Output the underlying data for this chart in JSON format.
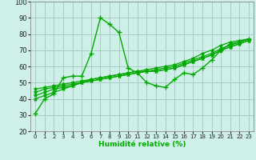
{
  "xlabel": "Humidité relative (%)",
  "background_color": "#cff0e8",
  "grid_color": "#aaccc4",
  "line_color": "#00aa00",
  "xlim": [
    -0.5,
    23.5
  ],
  "ylim": [
    20,
    100
  ],
  "yticks": [
    20,
    30,
    40,
    50,
    60,
    70,
    80,
    90,
    100
  ],
  "xticks": [
    0,
    1,
    2,
    3,
    4,
    5,
    6,
    7,
    8,
    9,
    10,
    11,
    12,
    13,
    14,
    15,
    16,
    17,
    18,
    19,
    20,
    21,
    22,
    23
  ],
  "series_main": [
    31,
    40,
    43,
    53,
    54,
    54,
    68,
    90,
    86,
    81,
    59,
    56,
    50,
    48,
    47,
    52,
    56,
    55,
    59,
    64,
    70,
    74,
    75,
    77
  ],
  "series_smooth": [
    [
      40,
      42,
      44,
      46,
      48,
      50,
      52,
      53,
      54,
      55,
      56,
      57,
      57,
      57,
      58,
      59,
      61,
      63,
      65,
      67,
      70,
      72,
      74,
      76
    ],
    [
      42,
      44,
      46,
      47,
      48,
      50,
      51,
      52,
      53,
      54,
      55,
      56,
      57,
      57,
      58,
      59,
      61,
      63,
      65,
      67,
      70,
      72,
      74,
      76
    ],
    [
      44,
      46,
      47,
      48,
      49,
      50,
      51,
      52,
      53,
      54,
      55,
      56,
      57,
      58,
      59,
      60,
      62,
      64,
      66,
      68,
      71,
      73,
      75,
      77
    ],
    [
      46,
      47,
      48,
      49,
      50,
      51,
      52,
      53,
      54,
      55,
      56,
      57,
      58,
      59,
      60,
      61,
      63,
      65,
      68,
      70,
      73,
      75,
      76,
      77
    ]
  ]
}
